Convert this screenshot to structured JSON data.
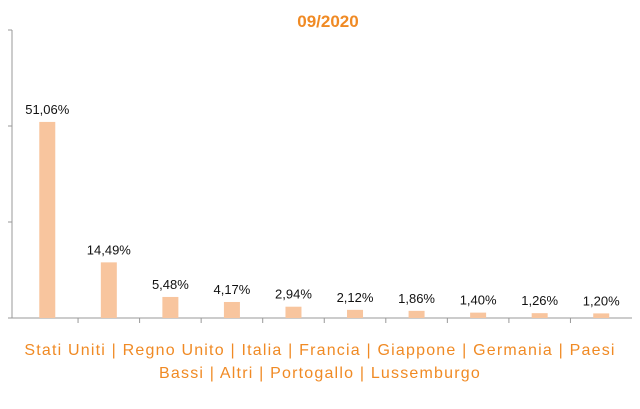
{
  "chart_data": {
    "type": "bar",
    "title": "09/2020",
    "x_label": "Stati Uniti | Regno Unito | Italia | Francia | Giappone | Germania | Paesi Bassi | Altri | Portogallo | Lussemburgo",
    "values": [
      51.06,
      14.49,
      5.48,
      4.17,
      2.94,
      2.12,
      1.86,
      1.4,
      1.26,
      1.2
    ],
    "value_labels": [
      "51,06%",
      "14,49%",
      "5,48%",
      "4,17%",
      "2,94%",
      "2,12%",
      "1,86%",
      "1,40%",
      "1,26%",
      "1,20%"
    ],
    "color": "#f8c59e",
    "ylim": [
      0,
      75
    ],
    "yticks": [
      0,
      25,
      50,
      75
    ]
  }
}
